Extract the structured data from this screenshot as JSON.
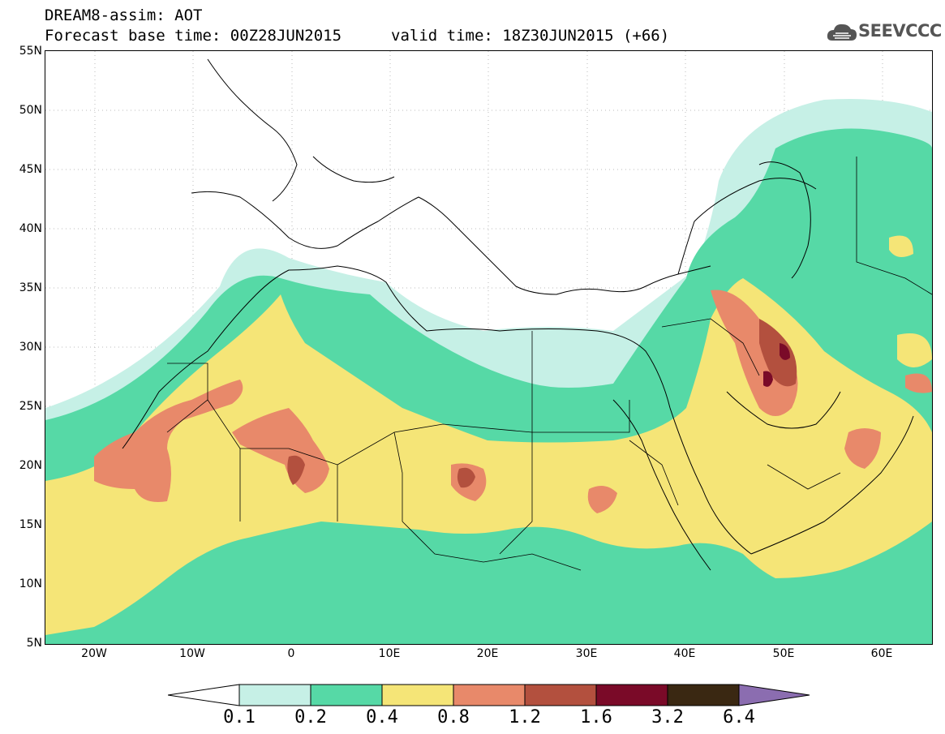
{
  "title": {
    "line1": "DREAM8-assim: AOT",
    "line2": "Forecast base time: 00Z28JUN2015",
    "valid": "valid time: 18Z30JUN2015 (+66)"
  },
  "logo": {
    "text": "SEEVCCC",
    "icon": "cloud-logo-icon"
  },
  "map": {
    "y_ticks": [
      "55N",
      "50N",
      "45N",
      "40N",
      "35N",
      "30N",
      "25N",
      "20N",
      "15N",
      "10N",
      "5N"
    ],
    "x_ticks": [
      "20W",
      "10W",
      "0",
      "10E",
      "20E",
      "30E",
      "40E",
      "50E",
      "60E"
    ],
    "lat_range": [
      5,
      55
    ],
    "lon_range": [
      -25,
      65
    ]
  },
  "colorbar": {
    "labels": [
      "0.1",
      "0.2",
      "0.4",
      "0.8",
      "1.2",
      "1.6",
      "3.2",
      "6.4"
    ],
    "colors": {
      "under": "#ffffff",
      "c1": "#c6f0e6",
      "c2": "#56d9a6",
      "c3": "#f5e577",
      "c4": "#e8896a",
      "c5": "#b3503e",
      "c6": "#7a0a28",
      "c7": "#3a2812",
      "over": "#8b6db0"
    }
  }
}
